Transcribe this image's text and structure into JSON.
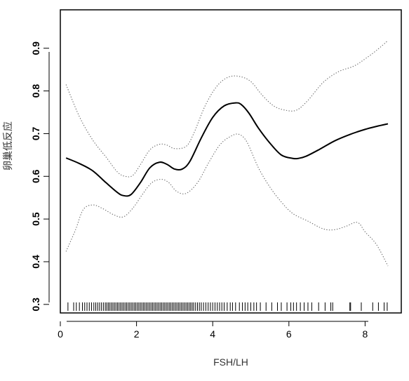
{
  "chart_data": {
    "type": "line",
    "xlabel": "FSH/LH",
    "ylabel": "卵巢低反应",
    "xlim": [
      0.0,
      8.95
    ],
    "ylim": [
      0.28,
      0.99
    ],
    "x_ticks": [
      0,
      2,
      4,
      6,
      8
    ],
    "y_ticks": [
      0.3,
      0.4,
      0.5,
      0.6,
      0.7,
      0.8,
      0.9
    ],
    "grid": false,
    "series": [
      {
        "style": "solid",
        "x": [
          0.15,
          0.5,
          0.85,
          1.2,
          1.5,
          1.65,
          1.85,
          2.1,
          2.35,
          2.6,
          2.8,
          3.0,
          3.2,
          3.4,
          3.7,
          4.0,
          4.3,
          4.6,
          4.75,
          4.95,
          5.2,
          5.5,
          5.8,
          6.1,
          6.25,
          6.45,
          6.8,
          7.2,
          7.6,
          8.0,
          8.3,
          8.6
        ],
        "y": [
          0.643,
          0.63,
          0.613,
          0.585,
          0.562,
          0.555,
          0.557,
          0.585,
          0.62,
          0.633,
          0.628,
          0.617,
          0.617,
          0.635,
          0.69,
          0.738,
          0.765,
          0.772,
          0.768,
          0.748,
          0.713,
          0.678,
          0.65,
          0.642,
          0.642,
          0.647,
          0.663,
          0.683,
          0.698,
          0.71,
          0.717,
          0.723
        ]
      },
      {
        "style": "dotted",
        "x": [
          0.15,
          0.5,
          0.85,
          1.2,
          1.5,
          1.7,
          1.9,
          2.1,
          2.35,
          2.6,
          2.8,
          3.0,
          3.3,
          3.5,
          3.8,
          4.1,
          4.4,
          4.7,
          5.0,
          5.3,
          5.6,
          5.9,
          6.2,
          6.5,
          6.9,
          7.3,
          7.7,
          8.0,
          8.3,
          8.6
        ],
        "y": [
          0.815,
          0.74,
          0.685,
          0.645,
          0.61,
          0.6,
          0.602,
          0.627,
          0.662,
          0.675,
          0.673,
          0.665,
          0.67,
          0.7,
          0.765,
          0.81,
          0.832,
          0.834,
          0.822,
          0.79,
          0.765,
          0.755,
          0.755,
          0.778,
          0.82,
          0.845,
          0.858,
          0.875,
          0.895,
          0.918
        ]
      },
      {
        "style": "dotted",
        "x": [
          0.15,
          0.4,
          0.6,
          0.85,
          1.1,
          1.4,
          1.65,
          1.9,
          2.15,
          2.4,
          2.65,
          2.85,
          3.05,
          3.3,
          3.6,
          3.9,
          4.2,
          4.5,
          4.7,
          4.9,
          5.2,
          5.5,
          5.8,
          6.1,
          6.5,
          6.9,
          7.2,
          7.5,
          7.8,
          8.0,
          8.3,
          8.6
        ],
        "y": [
          0.424,
          0.475,
          0.522,
          0.533,
          0.525,
          0.51,
          0.505,
          0.525,
          0.557,
          0.585,
          0.593,
          0.585,
          0.565,
          0.56,
          0.585,
          0.633,
          0.675,
          0.695,
          0.698,
          0.68,
          0.62,
          0.575,
          0.54,
          0.513,
          0.495,
          0.477,
          0.475,
          0.483,
          0.492,
          0.47,
          0.44,
          0.39
        ]
      }
    ],
    "rug": [
      0.2,
      0.35,
      0.42,
      0.5,
      0.58,
      0.64,
      0.7,
      0.76,
      0.82,
      0.88,
      0.93,
      0.98,
      1.03,
      1.08,
      1.13,
      1.18,
      1.22,
      1.26,
      1.3,
      1.34,
      1.38,
      1.42,
      1.46,
      1.5,
      1.54,
      1.58,
      1.62,
      1.66,
      1.7,
      1.74,
      1.78,
      1.82,
      1.86,
      1.9,
      1.94,
      1.98,
      2.02,
      2.06,
      2.1,
      2.14,
      2.18,
      2.22,
      2.26,
      2.3,
      2.34,
      2.38,
      2.42,
      2.46,
      2.5,
      2.54,
      2.58,
      2.62,
      2.66,
      2.7,
      2.74,
      2.78,
      2.82,
      2.86,
      2.9,
      2.94,
      2.98,
      3.02,
      3.06,
      3.1,
      3.14,
      3.18,
      3.22,
      3.26,
      3.3,
      3.34,
      3.38,
      3.42,
      3.46,
      3.5,
      3.55,
      3.6,
      3.65,
      3.7,
      3.76,
      3.82,
      3.88,
      3.94,
      4.0,
      4.06,
      4.12,
      4.18,
      4.24,
      4.3,
      4.38,
      4.46,
      4.52,
      4.6,
      4.7,
      4.78,
      4.85,
      4.92,
      5.0,
      5.08,
      5.15,
      5.25,
      5.4,
      5.55,
      5.7,
      5.8,
      5.95,
      6.05,
      6.12,
      6.2,
      6.3,
      6.4,
      6.5,
      6.6,
      6.78,
      6.95,
      7.1,
      7.15,
      7.6,
      7.62,
      7.9,
      8.2,
      8.35,
      8.5,
      8.58
    ]
  }
}
